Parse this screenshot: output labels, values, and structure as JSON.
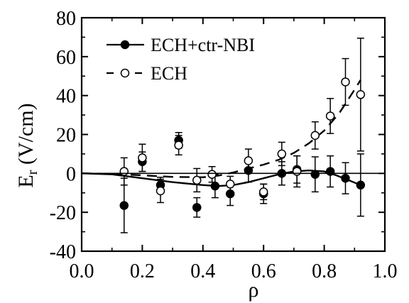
{
  "chart_data": {
    "type": "scatter",
    "xlabel": "ρ",
    "ylabel_main": "E",
    "ylabel_sub": "r",
    "ylabel_unit": "(V/cm)",
    "xlim": [
      0.0,
      1.0
    ],
    "ylim": [
      -40,
      80
    ],
    "xticks": [
      0.0,
      0.2,
      0.4,
      0.6,
      0.8,
      1.0
    ],
    "xtick_labels": [
      "0.0",
      "0.2",
      "0.4",
      "0.6",
      "0.8",
      "1.0"
    ],
    "yticks": [
      -40,
      -20,
      0,
      20,
      40,
      60,
      80
    ],
    "ytick_labels": [
      "-40",
      "-20",
      "0",
      "20",
      "40",
      "60",
      "80"
    ],
    "zero_line": true,
    "legend_position": "top-left",
    "series": [
      {
        "name": "ECH+ctr-NBI",
        "marker": "filled-circle",
        "line_style": "solid",
        "points": [
          {
            "x": 0.14,
            "y": -16.5,
            "err": 14
          },
          {
            "x": 0.2,
            "y": 6,
            "err": 5
          },
          {
            "x": 0.26,
            "y": -6,
            "err": 4
          },
          {
            "x": 0.32,
            "y": 17,
            "err": 4
          },
          {
            "x": 0.38,
            "y": -17.5,
            "err": 5
          },
          {
            "x": 0.44,
            "y": -6.5,
            "err": 6
          },
          {
            "x": 0.49,
            "y": -10.5,
            "err": 6
          },
          {
            "x": 0.55,
            "y": 1.5,
            "err": 6
          },
          {
            "x": 0.6,
            "y": -10.5,
            "err": 5
          },
          {
            "x": 0.66,
            "y": 0,
            "err": 6
          },
          {
            "x": 0.71,
            "y": 2,
            "err": 7
          },
          {
            "x": 0.77,
            "y": -0.5,
            "err": 9
          },
          {
            "x": 0.82,
            "y": 1,
            "err": 8
          },
          {
            "x": 0.87,
            "y": -2.5,
            "err": 8
          },
          {
            "x": 0.92,
            "y": -6,
            "err": 16
          }
        ],
        "fit": [
          {
            "x": 0.0,
            "y": 0
          },
          {
            "x": 0.1,
            "y": -0.5
          },
          {
            "x": 0.2,
            "y": -2.5
          },
          {
            "x": 0.3,
            "y": -4.5
          },
          {
            "x": 0.4,
            "y": -6
          },
          {
            "x": 0.45,
            "y": -6.5
          },
          {
            "x": 0.5,
            "y": -6
          },
          {
            "x": 0.55,
            "y": -4.5
          },
          {
            "x": 0.6,
            "y": -2.5
          },
          {
            "x": 0.65,
            "y": -0.5
          },
          {
            "x": 0.7,
            "y": 1
          },
          {
            "x": 0.75,
            "y": 1.5
          },
          {
            "x": 0.8,
            "y": 1
          },
          {
            "x": 0.84,
            "y": -1
          },
          {
            "x": 0.88,
            "y": -3.5
          },
          {
            "x": 0.92,
            "y": -6
          }
        ]
      },
      {
        "name": "ECH",
        "marker": "open-circle",
        "line_style": "dashed",
        "points": [
          {
            "x": 0.14,
            "y": 1,
            "err": 7
          },
          {
            "x": 0.2,
            "y": 8,
            "err": 7
          },
          {
            "x": 0.26,
            "y": -9,
            "err": 6
          },
          {
            "x": 0.32,
            "y": 14.5,
            "err": 5
          },
          {
            "x": 0.38,
            "y": -3.5,
            "err": 6
          },
          {
            "x": 0.43,
            "y": -0.5,
            "err": 4
          },
          {
            "x": 0.49,
            "y": -5.5,
            "err": 4
          },
          {
            "x": 0.55,
            "y": 6.5,
            "err": 6
          },
          {
            "x": 0.6,
            "y": -9.5,
            "err": 4
          },
          {
            "x": 0.66,
            "y": 10,
            "err": 6
          },
          {
            "x": 0.71,
            "y": 1,
            "err": 8
          },
          {
            "x": 0.77,
            "y": 19.5,
            "err": 7
          },
          {
            "x": 0.82,
            "y": 29.5,
            "err": 9
          },
          {
            "x": 0.87,
            "y": 47,
            "err": 12
          },
          {
            "x": 0.92,
            "y": 40.5,
            "err": 29
          }
        ],
        "fit": [
          {
            "x": 0.0,
            "y": 0
          },
          {
            "x": 0.1,
            "y": -0.2
          },
          {
            "x": 0.2,
            "y": -1
          },
          {
            "x": 0.3,
            "y": -1.8
          },
          {
            "x": 0.4,
            "y": -2
          },
          {
            "x": 0.45,
            "y": -1.2
          },
          {
            "x": 0.5,
            "y": 0.5
          },
          {
            "x": 0.55,
            "y": 2.5
          },
          {
            "x": 0.6,
            "y": 4.5
          },
          {
            "x": 0.65,
            "y": 7
          },
          {
            "x": 0.7,
            "y": 10.5
          },
          {
            "x": 0.75,
            "y": 15.5
          },
          {
            "x": 0.8,
            "y": 22
          },
          {
            "x": 0.85,
            "y": 31
          },
          {
            "x": 0.9,
            "y": 43
          },
          {
            "x": 0.92,
            "y": 48
          }
        ]
      }
    ]
  }
}
